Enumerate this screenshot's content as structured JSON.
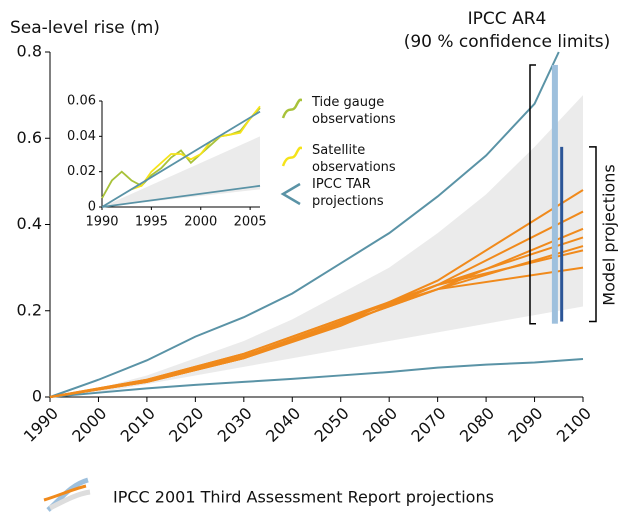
{
  "chart_data": [
    {
      "type": "line",
      "y_label": "Sea-level rise (m)",
      "xlim": [
        1990,
        2100
      ],
      "ylim": [
        0,
        0.8
      ],
      "xticks": [
        1990,
        2000,
        2010,
        2020,
        2030,
        2040,
        2050,
        2060,
        2070,
        2080,
        2090,
        2100
      ],
      "yticks": [
        0,
        0.2,
        0.4,
        0.6,
        0.8
      ],
      "band": {
        "color": "#ebebeb",
        "x": [
          1990,
          2000,
          2010,
          2020,
          2030,
          2040,
          2050,
          2060,
          2070,
          2080,
          2090,
          2100
        ],
        "lower": [
          0,
          0.01,
          0.03,
          0.05,
          0.07,
          0.09,
          0.11,
          0.13,
          0.15,
          0.17,
          0.19,
          0.21
        ],
        "upper": [
          0,
          0.02,
          0.05,
          0.09,
          0.13,
          0.18,
          0.24,
          0.3,
          0.38,
          0.47,
          0.58,
          0.7
        ]
      },
      "series": [
        {
          "color": "#5a93a6",
          "x": [
            1990,
            2000,
            2010,
            2020,
            2030,
            2040,
            2050,
            2060,
            2070,
            2080,
            2090,
            2095
          ],
          "values": [
            0,
            0.04,
            0.085,
            0.14,
            0.185,
            0.24,
            0.31,
            0.38,
            0.465,
            0.56,
            0.68,
            0.8
          ]
        },
        {
          "color": "#5a93a6",
          "x": [
            1990,
            2000,
            2010,
            2020,
            2030,
            2040,
            2050,
            2060,
            2070,
            2080,
            2090,
            2100
          ],
          "values": [
            0,
            0.01,
            0.02,
            0.028,
            0.035,
            0.042,
            0.05,
            0.058,
            0.068,
            0.075,
            0.08,
            0.088
          ]
        },
        {
          "color": "#f08a1c",
          "x": [
            1990,
            2010,
            2030,
            2050,
            2070,
            2100
          ],
          "values": [
            0,
            0.035,
            0.09,
            0.17,
            0.27,
            0.48
          ]
        },
        {
          "color": "#f08a1c",
          "x": [
            1990,
            2010,
            2030,
            2050,
            2070,
            2100
          ],
          "values": [
            0,
            0.035,
            0.09,
            0.165,
            0.26,
            0.43
          ]
        },
        {
          "color": "#f08a1c",
          "x": [
            1990,
            2010,
            2030,
            2050,
            2070,
            2100
          ],
          "values": [
            0,
            0.035,
            0.09,
            0.17,
            0.25,
            0.39
          ]
        },
        {
          "color": "#f08a1c",
          "x": [
            1990,
            2010,
            2030,
            2050,
            2070,
            2100
          ],
          "values": [
            0,
            0.037,
            0.095,
            0.175,
            0.26,
            0.37
          ]
        },
        {
          "color": "#f08a1c",
          "x": [
            1990,
            2010,
            2030,
            2050,
            2070,
            2100
          ],
          "values": [
            0,
            0.037,
            0.095,
            0.17,
            0.25,
            0.35
          ]
        },
        {
          "color": "#f08a1c",
          "x": [
            1990,
            2010,
            2030,
            2050,
            2070,
            2100
          ],
          "values": [
            0,
            0.04,
            0.1,
            0.18,
            0.26,
            0.34
          ]
        },
        {
          "color": "#f08a1c",
          "x": [
            1990,
            2010,
            2030,
            2050,
            2070,
            2100
          ],
          "values": [
            0,
            0.04,
            0.1,
            0.18,
            0.25,
            0.3
          ]
        }
      ],
      "bars": [
        {
          "x": 2094.2,
          "low": 0.17,
          "high": 0.77,
          "color": "#9ec0dd"
        },
        {
          "x": 2095.6,
          "low": 0.175,
          "high": 0.58,
          "color": "#2b5597"
        }
      ],
      "annotations": [
        "IPCC AR4",
        "(90 % confidence limits)",
        "Model projections"
      ],
      "legend_label": "IPCC 2001 Third Assessment Report projections"
    },
    {
      "type": "line",
      "xlim": [
        1990,
        2006
      ],
      "ylim": [
        0,
        0.06
      ],
      "xticks": [
        1990,
        1995,
        2000,
        2005
      ],
      "yticks": [
        0,
        0.02,
        0.04,
        0.06
      ],
      "band": {
        "color": "#ebebeb",
        "x": [
          1990,
          2006
        ],
        "lower": [
          0,
          0.01
        ],
        "upper": [
          0,
          0.04
        ]
      },
      "series": [
        {
          "name": "Tide gauge observations",
          "color": "#a8c23a",
          "x": [
            1990,
            1991,
            1992,
            1993,
            1994,
            1995,
            1996,
            1997,
            1998,
            1999,
            2000,
            2001,
            2002,
            2003,
            2004,
            2005,
            2006
          ],
          "values": [
            0.005,
            0.015,
            0.02,
            0.015,
            0.012,
            0.018,
            0.022,
            0.028,
            0.032,
            0.025,
            0.03,
            0.035,
            0.04,
            0.041,
            0.043,
            0.05,
            0.056
          ]
        },
        {
          "name": "Satellite observations",
          "color": "#f5e31a",
          "x": [
            1993,
            1994,
            1995,
            1996,
            1997,
            1998,
            1999,
            2000,
            2001,
            2002,
            2003,
            2004,
            2005,
            2006
          ],
          "values": [
            0.01,
            0.012,
            0.02,
            0.025,
            0.03,
            0.03,
            0.027,
            0.03,
            0.037,
            0.04,
            0.041,
            0.042,
            0.05,
            0.057
          ]
        },
        {
          "name": "IPCC TAR projections",
          "color": "#5a93a6",
          "x": [
            1990,
            2006
          ],
          "values": [
            0,
            0.054
          ]
        },
        {
          "color": "#5a93a6",
          "x": [
            1990,
            2006
          ],
          "values": [
            0,
            0.012
          ]
        }
      ]
    }
  ]
}
